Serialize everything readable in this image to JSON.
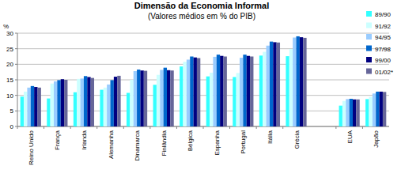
{
  "chart_data": {
    "type": "bar",
    "title": "Dimensão da Economia Informal",
    "subtitle": "(Valores médios em % do PIB)",
    "y_label": "%",
    "categories": [
      "Reino Unido",
      "França",
      "Irlanda",
      "Alemanha",
      "Dinamarca",
      "Finlândia",
      "Bélgica",
      "Espanha",
      "Portugal",
      "Itália",
      "Grécia",
      null,
      "EUA",
      "Japão"
    ],
    "series": [
      {
        "name": "89/90",
        "color": "#33ffff",
        "values": [
          9.6,
          9.0,
          11.0,
          11.8,
          10.8,
          13.4,
          19.3,
          16.1,
          15.9,
          22.8,
          22.6,
          null,
          6.7,
          8.8
        ]
      },
      {
        "name": "91/92",
        "color": "#ccffff",
        "values": [
          11.2,
          13.8,
          15.3,
          12.5,
          15.0,
          16.6,
          20.8,
          17.3,
          17.2,
          24.0,
          24.9,
          null,
          8.2,
          9.5
        ]
      },
      {
        "name": "94/95",
        "color": "#99ccff",
        "values": [
          12.5,
          14.5,
          15.4,
          13.5,
          17.8,
          18.2,
          21.5,
          22.4,
          22.1,
          26.0,
          28.6,
          null,
          8.8,
          10.6
        ]
      },
      {
        "name": "97/98",
        "color": "#0066cc",
        "values": [
          13.0,
          14.9,
          16.2,
          14.9,
          18.3,
          18.9,
          22.5,
          23.1,
          23.1,
          27.3,
          29.0,
          null,
          8.9,
          11.2
        ]
      },
      {
        "name": "99/00",
        "color": "#000080",
        "values": [
          12.7,
          15.2,
          15.9,
          16.0,
          18.0,
          18.1,
          22.2,
          22.7,
          22.7,
          27.1,
          28.7,
          null,
          8.7,
          11.2
        ]
      },
      {
        "name": "01/02*",
        "color": "#666699",
        "values": [
          12.5,
          15.0,
          15.6,
          16.3,
          17.9,
          18.0,
          22.0,
          22.5,
          22.5,
          27.0,
          28.5,
          null,
          8.7,
          11.1
        ]
      }
    ],
    "ylim": [
      0,
      30
    ],
    "yticks": [
      0,
      5,
      10,
      15,
      20,
      25,
      30
    ],
    "grid": true,
    "legend": "right"
  }
}
